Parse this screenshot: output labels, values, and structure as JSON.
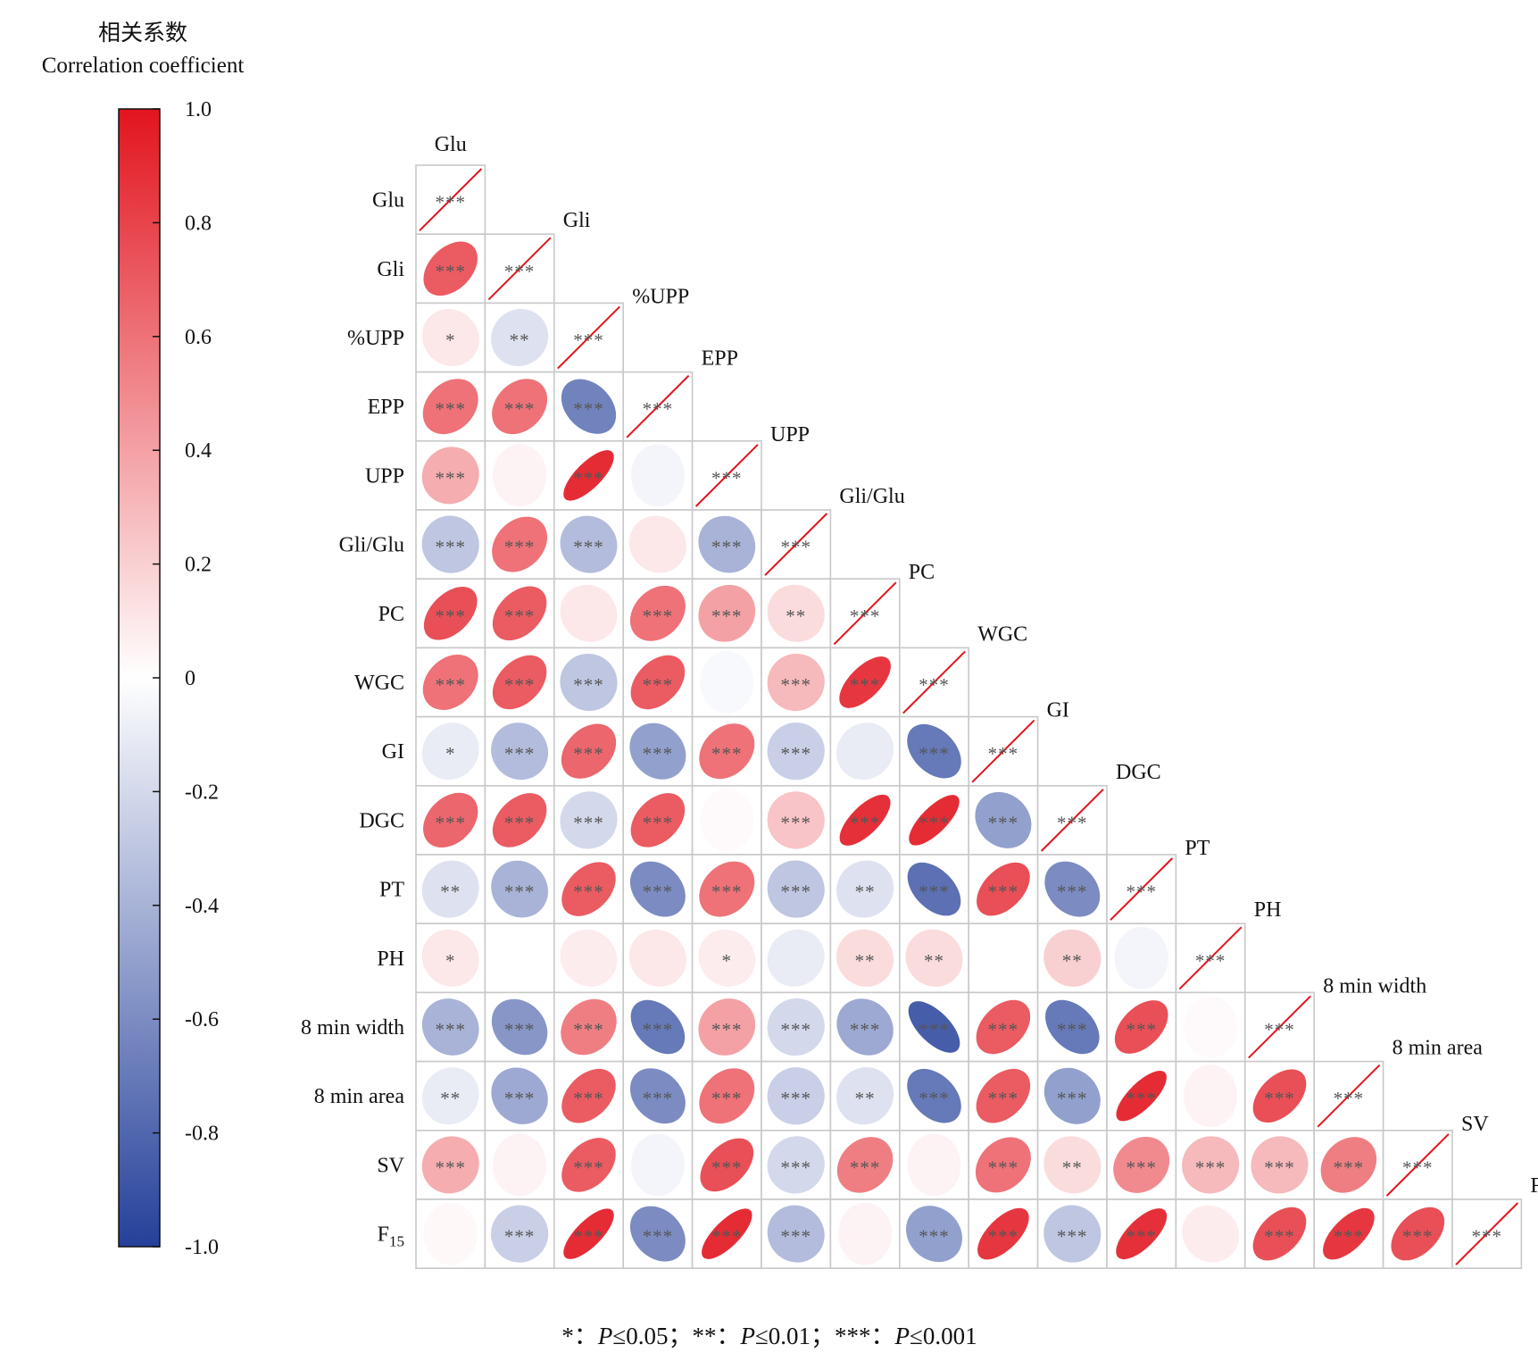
{
  "colorbar": {
    "title_cn": "相关系数",
    "title_en": "Correlation coefficient",
    "range": [
      -1.0,
      1.0
    ],
    "ticks": [
      "1.0",
      "0.8",
      "0.6",
      "0.4",
      "0.2",
      "0",
      "-0.2",
      "-0.4",
      "-0.6",
      "-0.8",
      "-1.0"
    ],
    "tick_values": [
      1.0,
      0.8,
      0.6,
      0.4,
      0.2,
      0,
      -0.2,
      -0.4,
      -0.6,
      -0.8,
      -1.0
    ],
    "colors": {
      "negative": "#25409a",
      "zero": "#ffffff",
      "positive": "#e2141e"
    }
  },
  "footnote": {
    "s1": "*：",
    "p1": "P",
    "v1": "≤0.05；",
    "s2": "**：",
    "p2": "P",
    "v2": "≤0.01；",
    "s3": "***：",
    "p3": "P",
    "v3": "≤0.001"
  },
  "chart_data": {
    "type": "heatmap",
    "variables": [
      "Glu",
      "Gli",
      "%UPP",
      "EPP",
      "UPP",
      "Gli/Glu",
      "PC",
      "WGC",
      "GI",
      "DGC",
      "PT",
      "PH",
      "8 min width",
      "8 min area",
      "SV",
      "F15"
    ],
    "variable_labels": [
      {
        "text": "Glu"
      },
      {
        "text": "Gli"
      },
      {
        "text": "%UPP"
      },
      {
        "text": "EPP"
      },
      {
        "text": "UPP"
      },
      {
        "text": "Gli/Glu"
      },
      {
        "text": "PC"
      },
      {
        "text": "WGC"
      },
      {
        "text": "GI"
      },
      {
        "text": "DGC"
      },
      {
        "text": "PT"
      },
      {
        "text": "PH"
      },
      {
        "text": "8 min width"
      },
      {
        "text": "8 min area"
      },
      {
        "text": "SV"
      },
      {
        "text": "F",
        "sub": "15"
      }
    ],
    "lower_triangle": true,
    "correlations": [
      [
        1.0
      ],
      [
        0.7,
        1.0
      ],
      [
        0.1,
        -0.15,
        1.0
      ],
      [
        0.6,
        0.6,
        -0.65,
        1.0
      ],
      [
        0.35,
        0.05,
        0.9,
        -0.05,
        1.0
      ],
      [
        -0.3,
        0.6,
        -0.35,
        0.1,
        -0.4,
        1.0
      ],
      [
        0.75,
        0.7,
        0.1,
        0.6,
        0.4,
        0.15,
        1.0
      ],
      [
        0.6,
        0.7,
        -0.3,
        0.7,
        -0.03,
        0.3,
        0.85,
        1.0
      ],
      [
        -0.1,
        -0.35,
        0.65,
        -0.5,
        0.6,
        -0.25,
        -0.1,
        -0.7,
        1.0
      ],
      [
        0.65,
        0.7,
        -0.2,
        0.7,
        0.02,
        0.25,
        0.88,
        0.9,
        -0.5,
        1.0
      ],
      [
        -0.15,
        -0.4,
        0.7,
        -0.6,
        0.6,
        -0.3,
        -0.15,
        -0.75,
        0.75,
        -0.6,
        1.0
      ],
      [
        0.1,
        0.0,
        0.08,
        0.1,
        0.08,
        -0.1,
        0.15,
        0.15,
        0.0,
        0.2,
        -0.05,
        1.0
      ],
      [
        -0.4,
        -0.55,
        0.55,
        -0.7,
        0.4,
        -0.2,
        -0.45,
        -0.85,
        0.7,
        -0.7,
        0.75,
        0.02,
        1.0
      ],
      [
        -0.1,
        -0.45,
        0.7,
        -0.6,
        0.6,
        -0.25,
        -0.15,
        -0.7,
        0.7,
        -0.5,
        0.9,
        0.05,
        0.75,
        1.0
      ],
      [
        0.35,
        0.05,
        0.7,
        -0.05,
        0.75,
        -0.2,
        0.55,
        0.05,
        0.6,
        0.15,
        0.5,
        0.3,
        0.3,
        0.55,
        1.0
      ],
      [
        0.03,
        -0.25,
        0.9,
        -0.6,
        0.9,
        -0.35,
        0.05,
        -0.5,
        0.85,
        -0.3,
        0.88,
        0.08,
        0.75,
        0.85,
        0.75,
        1.0
      ]
    ],
    "significance": [
      [
        "***"
      ],
      [
        "***",
        "***"
      ],
      [
        "*",
        "**",
        "***"
      ],
      [
        "***",
        "***",
        "***",
        "***"
      ],
      [
        "***",
        "",
        "***",
        "",
        "***"
      ],
      [
        "***",
        "***",
        "***",
        "",
        "***",
        "***"
      ],
      [
        "***",
        "***",
        "",
        "***",
        "***",
        "**",
        "***"
      ],
      [
        "***",
        "***",
        "***",
        "***",
        "",
        "***",
        "***",
        "***"
      ],
      [
        "*",
        "***",
        "***",
        "***",
        "***",
        "***",
        "",
        "***",
        "***"
      ],
      [
        "***",
        "***",
        "***",
        "***",
        "",
        "***",
        "***",
        "***",
        "***",
        "***"
      ],
      [
        "**",
        "***",
        "***",
        "***",
        "***",
        "***",
        "**",
        "***",
        "***",
        "***",
        "***"
      ],
      [
        "*",
        "",
        "",
        "",
        "*",
        "",
        "**",
        "**",
        "",
        "**",
        "",
        "***"
      ],
      [
        "***",
        "***",
        "***",
        "***",
        "***",
        "***",
        "***",
        "***",
        "***",
        "***",
        "***",
        "",
        "***"
      ],
      [
        "**",
        "***",
        "***",
        "***",
        "***",
        "***",
        "**",
        "***",
        "***",
        "***",
        "***",
        "",
        "***",
        "***"
      ],
      [
        "***",
        "",
        "***",
        "",
        "***",
        "***",
        "***",
        "",
        "***",
        "**",
        "***",
        "***",
        "***",
        "***",
        "***"
      ],
      [
        "",
        "***",
        "***",
        "***",
        "***",
        "***",
        "",
        "***",
        "***",
        "***",
        "***",
        "",
        "***",
        "***",
        "***",
        "***"
      ]
    ]
  }
}
